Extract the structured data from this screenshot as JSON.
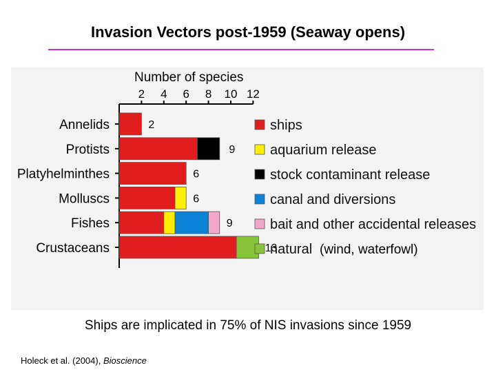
{
  "slide": {
    "title": "Invasion Vectors post-1959 (Seaway opens)",
    "caption": "Ships are implicated in 75% of NIS invasions since 1959",
    "citation_authors": "Holeck et al. (2004),",
    "citation_journal": "Bioscience"
  },
  "colors": {
    "title_rule": "#cc33cc",
    "figure_bg": "#f3f3f3"
  },
  "chart_data": {
    "type": "bar",
    "orientation": "horizontal",
    "stacked": true,
    "xlabel": "Number of species",
    "xlim": [
      0,
      12
    ],
    "x_ticks": [
      2,
      4,
      6,
      8,
      10,
      12
    ],
    "x_axis_position": "top",
    "categories": [
      "Annelids",
      "Protists",
      "Platyhelminthes",
      "Molluscs",
      "Fishes",
      "Crustaceans"
    ],
    "series": [
      {
        "name": "ships",
        "color": "#e01e1e",
        "values": [
          2,
          7,
          6,
          5,
          4,
          10.5
        ]
      },
      {
        "name": "aquarium release",
        "color": "#ffee00",
        "values": [
          0,
          0,
          0,
          1,
          1,
          0
        ]
      },
      {
        "name": "stock contaminant release",
        "color": "#000000",
        "values": [
          0,
          2,
          0,
          0,
          0,
          0
        ]
      },
      {
        "name": "canal and diversions",
        "color": "#0a82d8",
        "values": [
          0,
          0,
          0,
          0,
          3,
          0
        ]
      },
      {
        "name": "bait and other accidental releases",
        "color": "#f4a6c9",
        "values": [
          0,
          0,
          0,
          0,
          1,
          0
        ]
      },
      {
        "name": "natural",
        "color": "#88c43a",
        "values": [
          0,
          0,
          0,
          0,
          0,
          2
        ]
      }
    ],
    "totals": [
      2,
      9,
      6,
      6,
      9,
      13
    ],
    "natural_note": "(wind, waterfowl)",
    "legend_position": "right",
    "grid": false
  }
}
